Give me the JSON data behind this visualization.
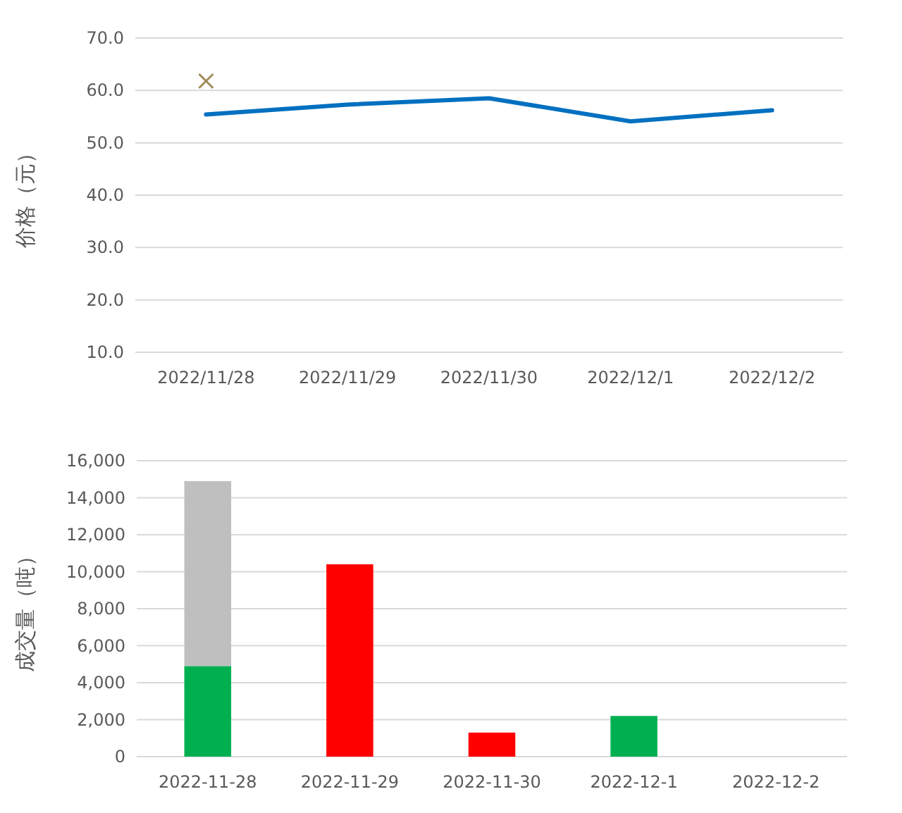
{
  "chart_data": [
    {
      "type": "line",
      "ylabel": "价格（元）",
      "categories": [
        "2022/11/28",
        "2022/11/29",
        "2022/11/30",
        "2022/12/1",
        "2022/12/2"
      ],
      "ylim": [
        10,
        70
      ],
      "yticks": [
        {
          "value": 10,
          "label": "10.0"
        },
        {
          "value": 20,
          "label": "20.0"
        },
        {
          "value": 30,
          "label": "30.0"
        },
        {
          "value": 40,
          "label": "40.0"
        },
        {
          "value": 50,
          "label": "50.0"
        },
        {
          "value": 60,
          "label": "60.0"
        },
        {
          "value": 70,
          "label": "70.0"
        }
      ],
      "grid": "y",
      "series": [
        {
          "color": "#0070c0",
          "values": [
            55.4,
            57.3,
            58.5,
            54.1,
            56.2
          ]
        },
        {
          "type": "scatter",
          "marker": "cross",
          "color": "#a08c5a",
          "values": [
            61.8,
            null,
            null,
            null,
            null
          ]
        }
      ]
    },
    {
      "type": "bar",
      "stacked": true,
      "ylabel": "成交量（吨）",
      "categories": [
        "2022-11-28",
        "2022-11-29",
        "2022-11-30",
        "2022-12-1",
        "2022-12-2"
      ],
      "ylim": [
        0,
        16000
      ],
      "yticks": [
        0,
        {
          "value": 2000,
          "label": "2,000"
        },
        {
          "value": 4000,
          "label": "4,000"
        },
        {
          "value": 6000,
          "label": "6,000"
        },
        {
          "value": 8000,
          "label": "8,000"
        },
        {
          "value": 10000,
          "label": "10,000"
        },
        {
          "value": 12000,
          "label": "12,000"
        },
        {
          "value": 14000,
          "label": "14,000"
        },
        {
          "value": 16000,
          "label": "16,000"
        }
      ],
      "grid": "y",
      "series": [
        {
          "color": "#00b050",
          "values": [
            4900,
            null,
            null,
            2200,
            null
          ]
        },
        {
          "color": "#bfbfbf",
          "values": [
            10000,
            null,
            null,
            null,
            null
          ]
        },
        {
          "color": "#ff0000",
          "values": [
            null,
            10400,
            1300,
            null,
            null
          ]
        }
      ]
    }
  ]
}
